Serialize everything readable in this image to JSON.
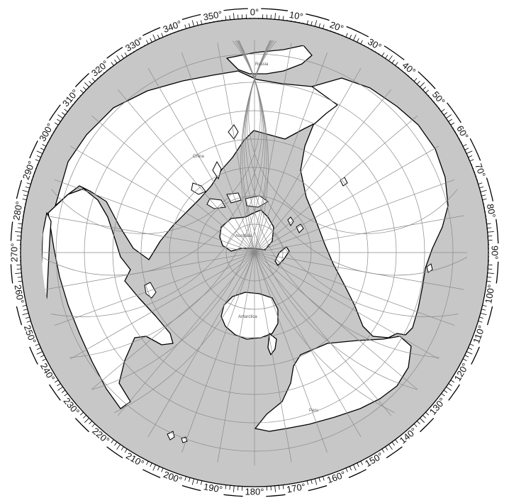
{
  "map": {
    "projection_center": "Australia",
    "ocean_color": "#c7c7c7",
    "land_color": "#ffffff",
    "graticule_color": "#8a8a8a",
    "ring_color": "#ffffff",
    "tick_color": "#000000"
  },
  "degree_labels": [
    "0°",
    "10°",
    "20°",
    "30°",
    "40°",
    "50°",
    "60°",
    "70°",
    "80°",
    "90°",
    "100°",
    "110°",
    "120°",
    "130°",
    "140°",
    "150°",
    "160°",
    "170°",
    "180°",
    "190°",
    "200°",
    "210°",
    "220°",
    "230°",
    "240°",
    "250°",
    "260°",
    "270°",
    "280°",
    "290°",
    "300°",
    "310°",
    "320°",
    "330°",
    "340°",
    "350°"
  ],
  "place_labels": {
    "australia": "Australia",
    "antarctica": "Antarctica",
    "china": "China",
    "russia": "Russia",
    "peru": "Peru"
  }
}
